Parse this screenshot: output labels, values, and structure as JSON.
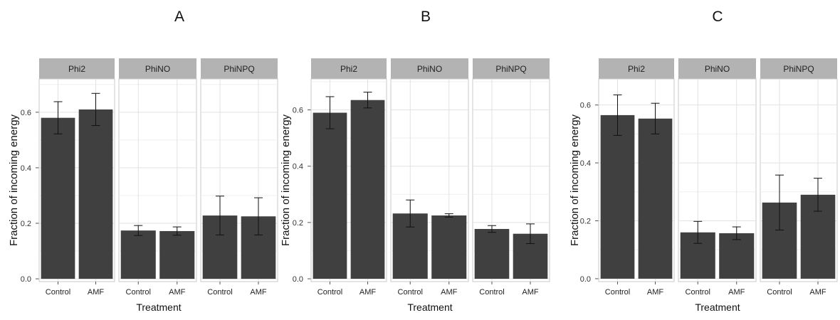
{
  "chart_data": [
    {
      "type": "bar",
      "title": "A",
      "xlabel": "Treatment",
      "ylabel": "Fraction of incoming energy",
      "ylim": [
        -0.01,
        0.72
      ],
      "yticks": [
        0.0,
        0.2,
        0.4,
        0.6
      ],
      "ytick_labels": [
        "0.0",
        "0.2",
        "0.4",
        "0.6"
      ],
      "categories": [
        "Control",
        "AMF"
      ],
      "grid": true,
      "panels": [
        {
          "name": "Phi2",
          "values": [
            0.58,
            0.61
          ],
          "errors": [
            0.058,
            0.058
          ]
        },
        {
          "name": "PhiNO",
          "values": [
            0.174,
            0.172
          ],
          "errors": [
            0.018,
            0.015
          ]
        },
        {
          "name": "PhiNPQ",
          "values": [
            0.228,
            0.225
          ],
          "errors": [
            0.07,
            0.067
          ]
        }
      ]
    },
    {
      "type": "bar",
      "title": "B",
      "xlabel": "Treatment",
      "ylabel": "Fraction of incoming energy",
      "ylim": [
        -0.01,
        0.71
      ],
      "yticks": [
        0.0,
        0.2,
        0.4,
        0.6
      ],
      "ytick_labels": [
        "0.0",
        "0.2",
        "0.4",
        "0.6"
      ],
      "categories": [
        "Control",
        "AMF"
      ],
      "grid": true,
      "panels": [
        {
          "name": "Phi2",
          "values": [
            0.59,
            0.635
          ],
          "errors": [
            0.057,
            0.028
          ]
        },
        {
          "name": "PhiNO",
          "values": [
            0.232,
            0.225
          ],
          "errors": [
            0.048,
            0.006
          ]
        },
        {
          "name": "PhiNPQ",
          "values": [
            0.177,
            0.16
          ],
          "errors": [
            0.012,
            0.035
          ]
        }
      ]
    },
    {
      "type": "bar",
      "title": "C",
      "xlabel": "Treatment",
      "ylabel": "Fraction of incoming energy",
      "ylim": [
        -0.01,
        0.69
      ],
      "yticks": [
        0.0,
        0.2,
        0.4,
        0.6
      ],
      "ytick_labels": [
        "0.0",
        "0.2",
        "0.4",
        "0.6"
      ],
      "categories": [
        "Control",
        "AMF"
      ],
      "grid": true,
      "panels": [
        {
          "name": "Phi2",
          "values": [
            0.565,
            0.553
          ],
          "errors": [
            0.07,
            0.053
          ]
        },
        {
          "name": "PhiNO",
          "values": [
            0.16,
            0.157
          ],
          "errors": [
            0.038,
            0.022
          ]
        },
        {
          "name": "PhiNPQ",
          "values": [
            0.263,
            0.29
          ],
          "errors": [
            0.095,
            0.057
          ]
        }
      ]
    }
  ]
}
